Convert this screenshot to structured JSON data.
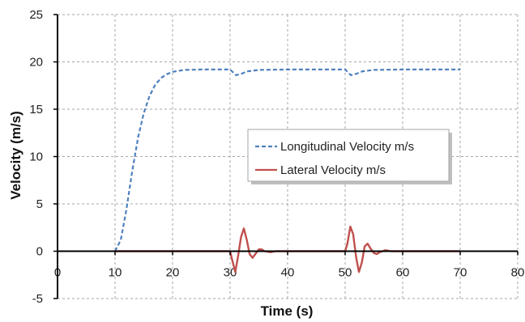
{
  "chart_data": {
    "type": "line",
    "xlabel": "Time (s)",
    "ylabel": "Velocity (m/s)",
    "xlim": [
      0,
      80
    ],
    "ylim": [
      -5,
      25
    ],
    "x_ticks": [
      0,
      10,
      20,
      30,
      40,
      50,
      60,
      70,
      80
    ],
    "y_ticks": [
      -5,
      0,
      5,
      10,
      15,
      20,
      25
    ],
    "x_tick_labels": [
      "0",
      "10",
      "20",
      "30",
      "40",
      "50",
      "60",
      "70",
      "80"
    ],
    "y_tick_labels": [
      "-5",
      "0",
      "5",
      "10",
      "15",
      "20",
      "25"
    ],
    "grid": true,
    "legend_position": "center-right",
    "series": [
      {
        "name": "Longitudinal Velocity m/s",
        "color": "#4f81bd",
        "style": "dashed",
        "points": [
          [
            10,
            0
          ],
          [
            11,
            1.2
          ],
          [
            12,
            4.5
          ],
          [
            13,
            8.5
          ],
          [
            14,
            12.0
          ],
          [
            15,
            14.6
          ],
          [
            16,
            16.4
          ],
          [
            17,
            17.6
          ],
          [
            18,
            18.3
          ],
          [
            19,
            18.7
          ],
          [
            20,
            18.95
          ],
          [
            22,
            19.15
          ],
          [
            25,
            19.2
          ],
          [
            29,
            19.2
          ],
          [
            30,
            19.2
          ],
          [
            31,
            18.6
          ],
          [
            32,
            18.75
          ],
          [
            33,
            19.0
          ],
          [
            35,
            19.15
          ],
          [
            40,
            19.2
          ],
          [
            49,
            19.2
          ],
          [
            50,
            19.2
          ],
          [
            51,
            18.6
          ],
          [
            52,
            18.75
          ],
          [
            53,
            19.0
          ],
          [
            55,
            19.15
          ],
          [
            60,
            19.2
          ],
          [
            70,
            19.2
          ]
        ]
      },
      {
        "name": "Lateral Velocity m/s",
        "color": "#c0504d",
        "style": "solid",
        "points": [
          [
            10,
            0
          ],
          [
            30,
            0
          ],
          [
            30.4,
            -1.0
          ],
          [
            30.9,
            -2.2
          ],
          [
            31.4,
            -0.5
          ],
          [
            31.9,
            1.5
          ],
          [
            32.4,
            2.4
          ],
          [
            32.9,
            1.2
          ],
          [
            33.4,
            -0.3
          ],
          [
            33.9,
            -0.7
          ],
          [
            34.4,
            -0.3
          ],
          [
            35.0,
            0.2
          ],
          [
            35.5,
            0.2
          ],
          [
            36.0,
            0.0
          ],
          [
            37.0,
            -0.1
          ],
          [
            38.0,
            0
          ],
          [
            50,
            0
          ],
          [
            50.4,
            0.8
          ],
          [
            50.9,
            2.6
          ],
          [
            51.4,
            1.8
          ],
          [
            51.9,
            -0.6
          ],
          [
            52.4,
            -2.2
          ],
          [
            52.9,
            -1.2
          ],
          [
            53.4,
            0.5
          ],
          [
            53.9,
            0.8
          ],
          [
            54.4,
            0.3
          ],
          [
            55.0,
            -0.2
          ],
          [
            55.5,
            -0.3
          ],
          [
            56.0,
            -0.1
          ],
          [
            57.0,
            0.1
          ],
          [
            58.0,
            0
          ],
          [
            70,
            0
          ]
        ]
      }
    ]
  }
}
